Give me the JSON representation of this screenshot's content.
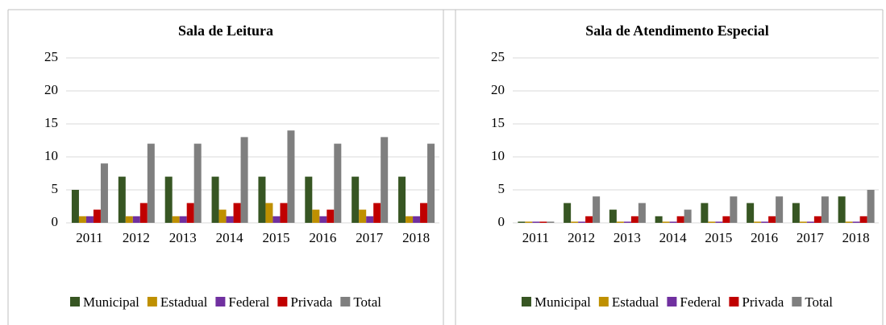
{
  "chart_data": [
    {
      "type": "bar",
      "title": "Sala de Leitura",
      "categories": [
        "2011",
        "2012",
        "2013",
        "2014",
        "2015",
        "2016",
        "2017",
        "2018"
      ],
      "series": [
        {
          "name": "Municipal",
          "color": "#375623",
          "values": [
            5,
            7,
            7,
            7,
            7,
            7,
            7,
            7
          ]
        },
        {
          "name": "Estadual",
          "color": "#bf9000",
          "values": [
            1,
            1,
            1,
            2,
            3,
            2,
            2,
            1
          ]
        },
        {
          "name": "Federal",
          "color": "#7030a0",
          "values": [
            1,
            1,
            1,
            1,
            1,
            1,
            1,
            1
          ]
        },
        {
          "name": "Privada",
          "color": "#c00000",
          "values": [
            2,
            3,
            3,
            3,
            3,
            2,
            3,
            3
          ]
        },
        {
          "name": "Total",
          "color": "#7f7f7f",
          "values": [
            9,
            12,
            12,
            13,
            14,
            12,
            13,
            12
          ]
        }
      ],
      "ylim": [
        0,
        25
      ],
      "yticks": [
        0,
        5,
        10,
        15,
        20,
        25
      ],
      "grid": true,
      "legend": "bottom"
    },
    {
      "type": "bar",
      "title": "Sala de Atendimento Especial",
      "categories": [
        "2011",
        "2012",
        "2013",
        "2014",
        "2015",
        "2016",
        "2017",
        "2018"
      ],
      "series": [
        {
          "name": "Municipal",
          "color": "#375623",
          "values": [
            0,
            3,
            2,
            1,
            3,
            3,
            3,
            4
          ]
        },
        {
          "name": "Estadual",
          "color": "#bf9000",
          "values": [
            0,
            0,
            0,
            0,
            0,
            0,
            0,
            0
          ]
        },
        {
          "name": "Federal",
          "color": "#7030a0",
          "values": [
            0,
            0,
            0,
            0,
            0,
            0,
            0,
            0
          ]
        },
        {
          "name": "Privada",
          "color": "#c00000",
          "values": [
            0,
            1,
            1,
            1,
            1,
            1,
            1,
            1
          ]
        },
        {
          "name": "Total",
          "color": "#7f7f7f",
          "values": [
            0,
            4,
            3,
            2,
            4,
            4,
            4,
            5
          ]
        }
      ],
      "ylim": [
        0,
        25
      ],
      "yticks": [
        0,
        5,
        10,
        15,
        20,
        25
      ],
      "grid": true,
      "legend": "bottom"
    }
  ]
}
